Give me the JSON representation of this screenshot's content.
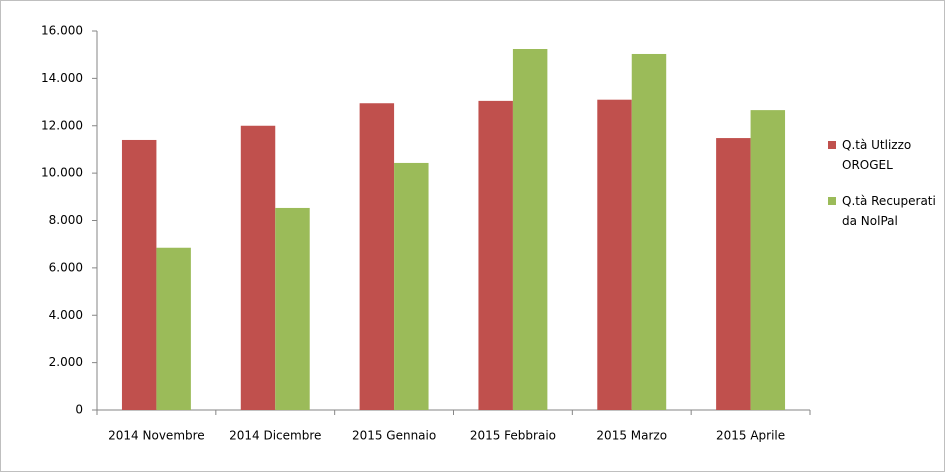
{
  "chart_data": {
    "type": "bar",
    "categories": [
      "2014 Novembre",
      "2014 Dicembre",
      "2015 Gennaio",
      "2015 Febbraio",
      "2015 Marzo",
      "2015 Aprile"
    ],
    "series": [
      {
        "name": "Q.tà Utlizzo OROGEL",
        "color": "#c0504d",
        "values": [
          11400,
          12000,
          12950,
          13050,
          13100,
          11480
        ]
      },
      {
        "name": "Q.tà Recuperati da NolPal",
        "color": "#9bbb59",
        "values": [
          6850,
          8530,
          10430,
          15240,
          15030,
          12660
        ]
      }
    ],
    "ylim": [
      0,
      16000
    ],
    "yticks": [
      0,
      {
        "value": 2000,
        "label": "2.000"
      },
      {
        "value": 4000,
        "label": "4.000"
      },
      {
        "value": 6000,
        "label": "6.000"
      },
      {
        "value": 8000,
        "label": "8.000"
      },
      {
        "value": 10000,
        "label": "10.000"
      },
      {
        "value": 12000,
        "label": "12.000"
      },
      {
        "value": 14000,
        "label": "14.000"
      },
      {
        "value": 16000,
        "label": "16.000"
      }
    ],
    "grid": false,
    "legend": "right"
  }
}
